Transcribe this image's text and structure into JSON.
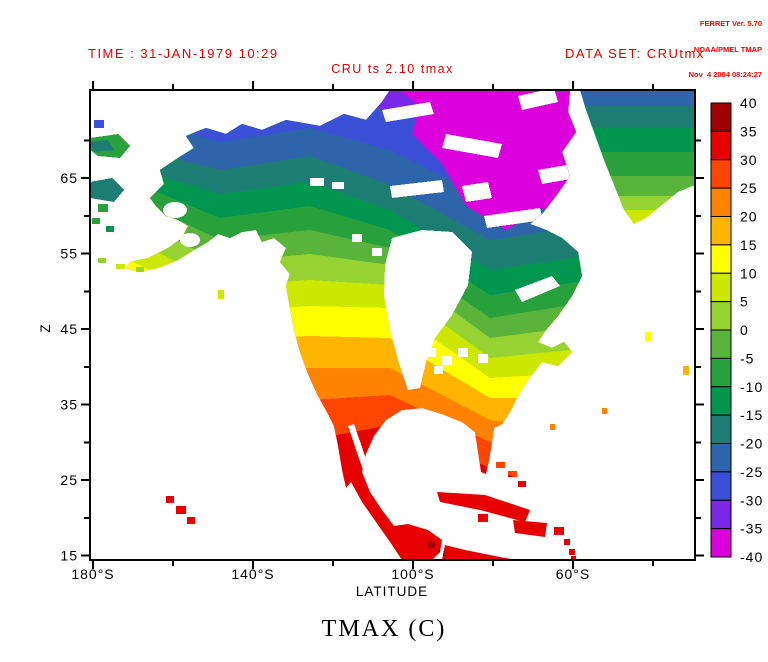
{
  "watermark": {
    "lines": [
      "FERRET Ver. 5.70",
      "NOAA/PMEL TMAP",
      "Nov  4 2004 08:24:27"
    ]
  },
  "header": {
    "time_label": "TIME : 31-JAN-1979 10:29",
    "dataset_label": "DATA SET: CRUtmx",
    "plot_title": "CRU ts 2.10 tmax"
  },
  "axes": {
    "x_label": "LATITUDE",
    "y_label": "Z",
    "x_ticks": [
      "180°S",
      "140°S",
      "100°S",
      "60°S"
    ],
    "y_ticks": [
      "65",
      "55",
      "45",
      "35",
      "25",
      "15"
    ]
  },
  "colorbar": {
    "labels": [
      "40",
      "35",
      "30",
      "25",
      "20",
      "15",
      "10",
      "5",
      "0",
      "-5",
      "-10",
      "-15",
      "-20",
      "-25",
      "-30",
      "-35",
      "-40"
    ],
    "colors": [
      "#A00000",
      "#E60000",
      "#FF4600",
      "#FF8200",
      "#FFB400",
      "#FFFF00",
      "#CDE800",
      "#96D232",
      "#5AB43C",
      "#28A03C",
      "#009650",
      "#1E7D73",
      "#2D64AA",
      "#3C50D7",
      "#7828E6",
      "#DC00DC"
    ]
  },
  "footer": {
    "title": "TMAX (C)"
  },
  "colors": {
    "annotation_red": "#E00000",
    "watermark_red": "#FF0000",
    "axis_black": "#000000",
    "no_data_white": "#FFFFFF"
  },
  "chart_data": {
    "type": "heatmap",
    "title": "CRU ts 2.10 tmax",
    "variable": "TMAX (C)",
    "time": "31-JAN-1979 10:29",
    "dataset": "CRUtmx",
    "tool": "FERRET Ver. 5.70 NOAA/PMEL TMAP",
    "xlabel": "LATITUDE",
    "ylabel": "Z",
    "x_tick_labels": [
      "180°S",
      "140°S",
      "100°S",
      "60°S"
    ],
    "x_range_estimate_deg": [
      180,
      30
    ],
    "y_tick_labels": [
      65,
      55,
      45,
      35,
      25,
      15
    ],
    "y_range_estimate": [
      14.5,
      76.5
    ],
    "levels": {
      "min": -40,
      "max": 40,
      "step": 5,
      "units": "degC"
    },
    "level_colors_top_to_bottom": [
      "#A00000",
      "#E60000",
      "#FF4600",
      "#FF8200",
      "#FFB400",
      "#FFFF00",
      "#CDE800",
      "#96D232",
      "#5AB43C",
      "#28A03C",
      "#009650",
      "#1E7D73",
      "#2D64AA",
      "#3C50D7",
      "#7828E6",
      "#DC00DC"
    ],
    "legend_position": "right",
    "grid": false,
    "region": "North America (land-only filled contours, ocean blank)",
    "pattern_summary": "Magenta/purple (-40 to -25 C) over the Canadian Arctic archipelago; blue (-30 to -20 C) across interior Alaska, Yukon and NWT; teal/dark green (-20 to -10 C) across central Canada, Quebec-Labrador and northern Greenland; greens (-10 to +5 C) over southern Canada, the northern US and southern Greenland tip; yellow (10-15 C) across the central/southeastern US; orange (15-25 C) over the southern US and Florida; red (25-35 C) over Mexico, the Caribbean islands, Hawaii and Central America; Hudson Bay, Great Lakes and Gulf of California blank (white)."
  }
}
